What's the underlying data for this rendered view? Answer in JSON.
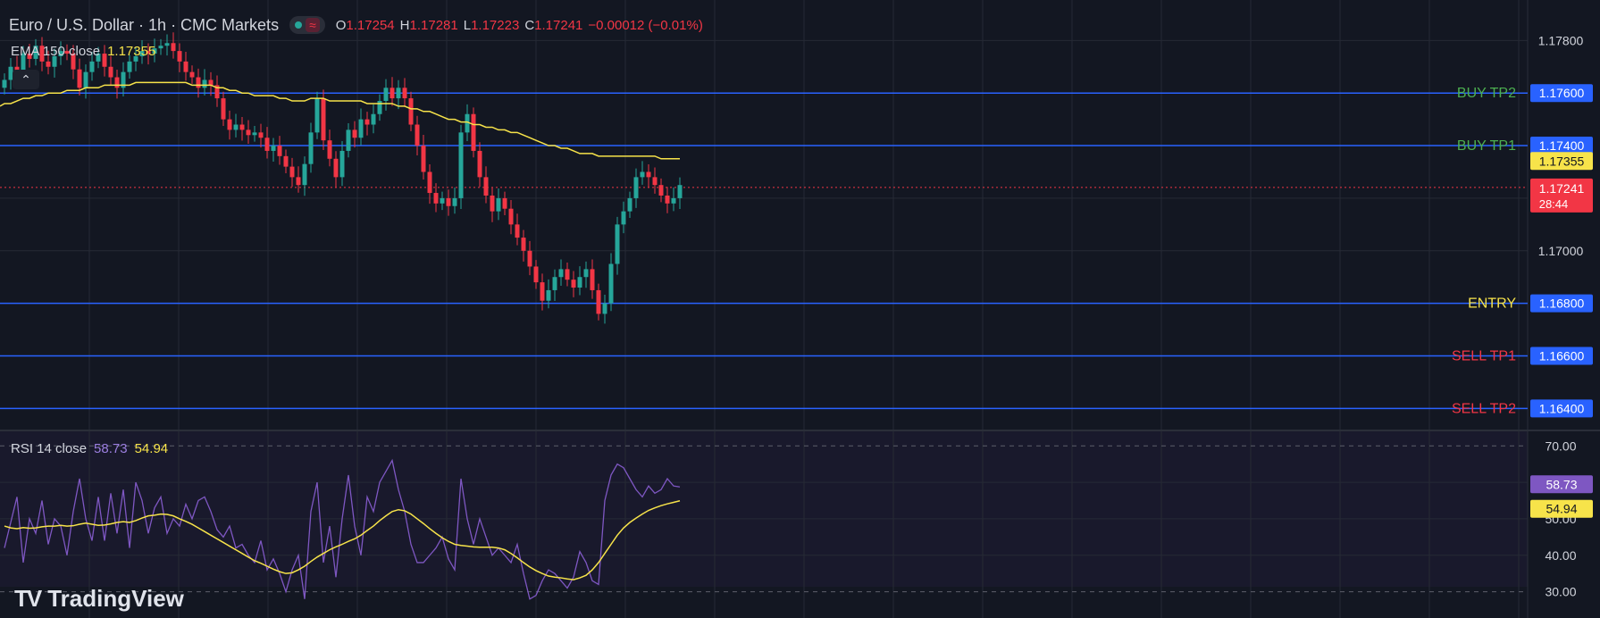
{
  "header": {
    "symbol": "Euro / U.S. Dollar · 1h · CMC Markets",
    "open_key": "O",
    "open": "1.17254",
    "high_key": "H",
    "high": "1.17281",
    "low_key": "L",
    "low": "1.17223",
    "close_key": "C",
    "close": "1.17241",
    "change": "−0.00012 (−0.01%)",
    "wave_icon": "≈"
  },
  "ema": {
    "label": "EMA 150 close",
    "value": "1.17355"
  },
  "rsi": {
    "label": "RSI 14 close",
    "value": "58.73",
    "ma_value": "54.94"
  },
  "collapse_icon": "⌃",
  "watermark": {
    "mark": "TV",
    "text": "TradingView"
  },
  "colors": {
    "background": "#131722",
    "grid": "#262a35",
    "up": "#26a69a",
    "down": "#f23645",
    "level_line": "#2962ff",
    "ema": "#f7e34a",
    "rsi": "#7e57c2",
    "rsi_ma": "#f7e34a"
  },
  "chart_data": [
    {
      "type": "candlestick",
      "title": "Euro / U.S. Dollar · 1h · CMC Markets",
      "ylim": [
        1.1633,
        1.1792
      ],
      "y_ticks": [
        "1.17800",
        "1.17000"
      ],
      "levels": [
        {
          "name": "BUY TP2",
          "value": 1.176,
          "label_color": "#4caf50",
          "price": "1.17600"
        },
        {
          "name": "BUY TP1",
          "value": 1.174,
          "label_color": "#4caf50",
          "price": "1.17400"
        },
        {
          "name": "ENTRY",
          "value": 1.168,
          "label_color": "#f7e34a",
          "price": "1.16800"
        },
        {
          "name": "SELL TP1",
          "value": 1.166,
          "label_color": "#f23645",
          "price": "1.16600"
        },
        {
          "name": "SELL TP2",
          "value": 1.164,
          "label_color": "#f23645",
          "price": "1.16400"
        }
      ],
      "ema_label": "1.17355",
      "ema_value": 1.17355,
      "last_price": {
        "value": 1.17241,
        "label": "1.17241",
        "countdown": "28:44"
      },
      "close": [
        1.1765,
        1.177,
        1.1768,
        1.1775,
        1.1773,
        1.1778,
        1.1772,
        1.177,
        1.1774,
        1.1776,
        1.1775,
        1.1769,
        1.1762,
        1.1768,
        1.1772,
        1.1775,
        1.177,
        1.1766,
        1.1762,
        1.1768,
        1.1772,
        1.1774,
        1.1776,
        1.1775,
        1.1777,
        1.1778,
        1.1779,
        1.1776,
        1.1772,
        1.1768,
        1.1766,
        1.1762,
        1.1765,
        1.1763,
        1.1758,
        1.175,
        1.1746,
        1.1748,
        1.1746,
        1.1744,
        1.1745,
        1.1743,
        1.1738,
        1.174,
        1.1736,
        1.1732,
        1.1728,
        1.1725,
        1.1733,
        1.1745,
        1.1758,
        1.1742,
        1.1735,
        1.1728,
        1.1738,
        1.1746,
        1.1743,
        1.175,
        1.1748,
        1.1752,
        1.1757,
        1.1762,
        1.1758,
        1.1762,
        1.1758,
        1.1748,
        1.174,
        1.173,
        1.1722,
        1.1718,
        1.172,
        1.1717,
        1.172,
        1.1745,
        1.1752,
        1.1738,
        1.1728,
        1.1721,
        1.1715,
        1.172,
        1.1716,
        1.171,
        1.1705,
        1.17,
        1.1694,
        1.1688,
        1.1681,
        1.1685,
        1.169,
        1.1693,
        1.1689,
        1.1686,
        1.169,
        1.1693,
        1.1685,
        1.1676,
        1.168,
        1.1695,
        1.171,
        1.1715,
        1.172,
        1.1728,
        1.173,
        1.1728,
        1.1725,
        1.1721,
        1.1718,
        1.172,
        1.1725
      ],
      "ema_series": [
        1.1756,
        1.1756,
        1.1757,
        1.1758,
        1.1758,
        1.1759,
        1.1759,
        1.176,
        1.176,
        1.176,
        1.1761,
        1.1761,
        1.1761,
        1.1762,
        1.1762,
        1.1762,
        1.1763,
        1.1763,
        1.1763,
        1.1763,
        1.1763,
        1.1764,
        1.1764,
        1.1764,
        1.1764,
        1.1764,
        1.1764,
        1.1764,
        1.1764,
        1.1764,
        1.1763,
        1.1763,
        1.1763,
        1.1763,
        1.1762,
        1.1762,
        1.1761,
        1.1761,
        1.176,
        1.176,
        1.1759,
        1.1759,
        1.1759,
        1.1759,
        1.1758,
        1.1758,
        1.1757,
        1.1757,
        1.1757,
        1.1758,
        1.1758,
        1.1758,
        1.1757,
        1.1757,
        1.1757,
        1.1757,
        1.1757,
        1.1757,
        1.1756,
        1.1756,
        1.1756,
        1.1756,
        1.1756,
        1.1755,
        1.1755,
        1.1754,
        1.1754,
        1.1753,
        1.1753,
        1.1752,
        1.1751,
        1.175,
        1.175,
        1.1749,
        1.1749,
        1.1748,
        1.1748,
        1.1747,
        1.1747,
        1.1746,
        1.1746,
        1.1745,
        1.1745,
        1.1744,
        1.1743,
        1.1742,
        1.1741,
        1.174,
        1.174,
        1.1739,
        1.1739,
        1.1738,
        1.1737,
        1.1737,
        1.1737,
        1.1736,
        1.1736,
        1.1736,
        1.1736,
        1.1736,
        1.1736,
        1.1736,
        1.1736,
        1.1736,
        1.1736,
        1.1735,
        1.1735,
        1.1735,
        1.1735
      ]
    },
    {
      "type": "line",
      "title": "RSI 14 close",
      "ylim": [
        25,
        73
      ],
      "y_ticks": [
        "70.00",
        "60.00",
        "50.00",
        "40.00",
        "30.00"
      ],
      "y_tick_values": [
        70,
        60,
        50,
        40,
        30
      ],
      "bands": [
        70,
        30
      ],
      "series": [
        {
          "name": "RSI",
          "last_label": "58.73",
          "values": [
            42,
            49,
            56,
            38,
            50,
            46,
            55,
            43,
            50,
            48,
            40,
            52,
            61,
            50,
            44,
            56,
            44,
            57,
            46,
            58,
            42,
            60,
            55,
            46,
            53,
            56,
            46,
            50,
            48,
            54,
            50,
            55,
            56,
            52,
            47,
            45,
            48,
            42,
            43,
            40,
            38,
            44,
            36,
            39,
            35,
            30,
            36,
            40,
            28,
            52,
            60,
            38,
            48,
            34,
            50,
            62,
            48,
            40,
            56,
            52,
            60,
            63,
            66,
            58,
            52,
            43,
            38,
            38,
            40,
            42,
            45,
            39,
            36,
            61,
            50,
            43,
            50,
            45,
            40,
            42,
            40,
            38,
            43,
            35,
            28,
            29,
            33,
            36,
            35,
            33,
            31,
            34,
            41,
            38,
            33,
            32,
            55,
            62,
            65,
            64,
            61,
            58,
            56,
            59,
            57,
            58,
            61,
            59,
            58.73
          ]
        },
        {
          "name": "RSI MA",
          "last_label": "54.94",
          "values": [
            48,
            47.5,
            47.3,
            47.6,
            47.4,
            47.5,
            47.8,
            48,
            48,
            48.2,
            48,
            48.1,
            48.5,
            48.8,
            48.5,
            48.2,
            48.3,
            48.6,
            49,
            49.2,
            49,
            49.5,
            50.2,
            50.8,
            51,
            51.3,
            51.2,
            50.8,
            50,
            49.3,
            48.5,
            47.5,
            46.5,
            45.5,
            44.5,
            43.5,
            42.5,
            41.5,
            40.5,
            39.5,
            38.5,
            37.8,
            37,
            36.2,
            35.5,
            35,
            35.2,
            36,
            37,
            38.3,
            39.5,
            40.5,
            41.5,
            42.3,
            43,
            43.8,
            44.5,
            45.5,
            46.8,
            48,
            49.5,
            50.8,
            52,
            52.5,
            52.2,
            51.3,
            50,
            48.7,
            47.3,
            46,
            44.8,
            43.8,
            43,
            42.7,
            42.5,
            42.3,
            42.2,
            42.2,
            42.2,
            42,
            41.5,
            40.5,
            39.3,
            38,
            36.8,
            35.8,
            35,
            34.3,
            34,
            33.8,
            33.5,
            33.3,
            33.8,
            34.5,
            36,
            38,
            40.5,
            43,
            45.5,
            47.5,
            49,
            50.2,
            51.3,
            52.3,
            53,
            53.6,
            54.1,
            54.5,
            54.94
          ]
        }
      ]
    }
  ]
}
